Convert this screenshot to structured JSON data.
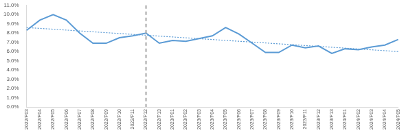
{
  "chart_data": {
    "type": "line",
    "categories": [
      "2022/P03",
      "2022/P04",
      "2022/P05",
      "2022/P06",
      "2022/P07",
      "2022/P08",
      "2022/P09",
      "2022/P10",
      "2022/P11",
      "2022/P12",
      "2022/P13",
      "2023/P01",
      "2023/P02",
      "2023/P03",
      "2023/P04",
      "2023/P05",
      "2023/P06",
      "2023/P07",
      "2023/P08",
      "2023/P09",
      "2023/P10",
      "2023/P11",
      "2023/P12",
      "2023/P13",
      "2024/P01",
      "2024/P02",
      "2024/P03",
      "2024/P04",
      "2024/P05"
    ],
    "series": [
      {
        "color": "#5b9bd5",
        "line_style": "solid",
        "values": [
          8.3,
          9.4,
          10.0,
          9.4,
          8.0,
          6.9,
          6.9,
          7.5,
          7.7,
          8.0,
          6.9,
          7.2,
          7.1,
          7.4,
          7.7,
          8.6,
          7.9,
          6.9,
          5.9,
          5.9,
          6.7,
          6.4,
          6.6,
          5.8,
          6.3,
          6.2,
          6.5,
          6.7,
          7.3
        ]
      },
      {
        "color": "#5b9bd5",
        "line_style": "dotted",
        "values": [
          8.6,
          null,
          null,
          null,
          null,
          null,
          null,
          null,
          null,
          null,
          null,
          null,
          null,
          null,
          null,
          null,
          null,
          null,
          null,
          null,
          null,
          null,
          null,
          null,
          null,
          null,
          null,
          null,
          6.0
        ]
      }
    ],
    "ylim": [
      0,
      11
    ],
    "yticks": [
      {
        "value": 0,
        "label": "0.0%"
      },
      {
        "value": 1,
        "label": "1.0%"
      },
      {
        "value": 2,
        "label": "2.0%"
      },
      {
        "value": 3,
        "label": "3.0%"
      },
      {
        "value": 4,
        "label": "4.0%"
      },
      {
        "value": 5,
        "label": "5.0%"
      },
      {
        "value": 6,
        "label": "6.0%"
      },
      {
        "value": 7,
        "label": "7.0%"
      },
      {
        "value": 8,
        "label": "8.0%"
      },
      {
        "value": 9,
        "label": "9.0%"
      },
      {
        "value": 10,
        "label": "10.0%"
      },
      {
        "value": 11,
        "label": "11.0%"
      }
    ],
    "grid": false,
    "vline": {
      "category": "2022/P12",
      "color": "#a6a6a6",
      "line_style": "dashed"
    }
  }
}
